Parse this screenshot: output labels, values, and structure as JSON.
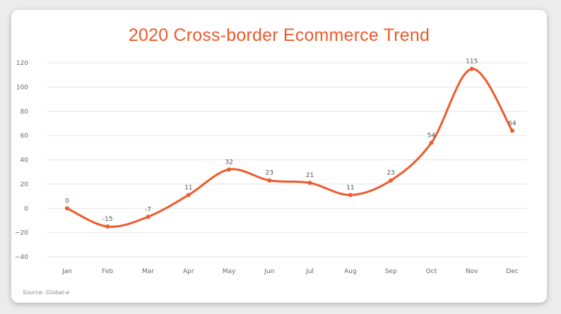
{
  "source_text": "Source: Global-e",
  "colors": {
    "accent": "#ed5b2d",
    "grid": "#e4e4e4",
    "background": "#ececec"
  },
  "chart_data": {
    "type": "line",
    "title": "2020 Cross-border Ecommerce Trend",
    "xlabel": "",
    "ylabel": "",
    "categories": [
      "Jan",
      "Feb",
      "Mar",
      "Apr",
      "May",
      "Jun",
      "Jul",
      "Aug",
      "Sep",
      "Oct",
      "Nov",
      "Dec"
    ],
    "series": [
      {
        "values": [
          0,
          -15,
          -7,
          11,
          32,
          23,
          21,
          11,
          23,
          54,
          115,
          64
        ],
        "labels": [
          "0",
          "-15",
          "-7",
          "11",
          "32",
          "23",
          "21",
          "11",
          "23",
          "54",
          "115",
          "64"
        ]
      }
    ],
    "ylim": [
      -40,
      120
    ],
    "yticks": [
      -40,
      -20,
      0,
      20,
      40,
      60,
      80,
      100,
      120
    ],
    "smooth": true,
    "grid": true,
    "legend": "none"
  }
}
